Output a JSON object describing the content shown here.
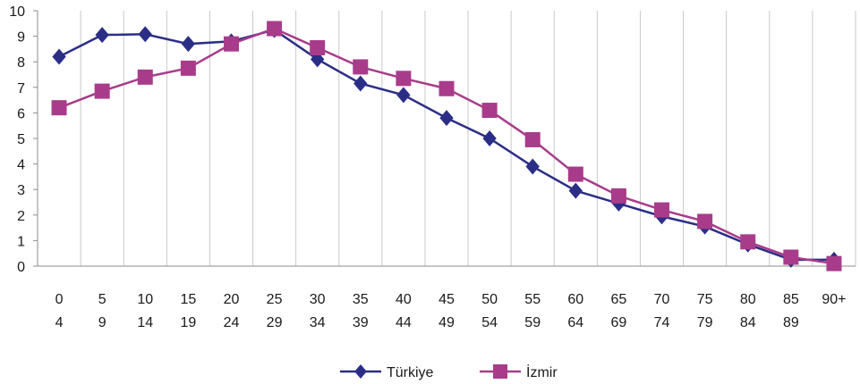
{
  "chart_data": {
    "type": "line",
    "categories": [
      [
        "0",
        "4"
      ],
      [
        "5",
        "9"
      ],
      [
        "10",
        "14"
      ],
      [
        "15",
        "19"
      ],
      [
        "20",
        "24"
      ],
      [
        "25",
        "29"
      ],
      [
        "30",
        "34"
      ],
      [
        "35",
        "39"
      ],
      [
        "40",
        "44"
      ],
      [
        "45",
        "49"
      ],
      [
        "50",
        "54"
      ],
      [
        "55",
        "59"
      ],
      [
        "60",
        "64"
      ],
      [
        "65",
        "69"
      ],
      [
        "70",
        "74"
      ],
      [
        "75",
        "79"
      ],
      [
        "80",
        "84"
      ],
      [
        "85",
        "89"
      ],
      [
        "90+",
        ""
      ]
    ],
    "series": [
      {
        "name": "Türkiye",
        "color": "#2b2e86",
        "marker": "diamond",
        "values": [
          8.2,
          9.05,
          9.08,
          8.7,
          8.8,
          9.25,
          8.1,
          7.15,
          6.7,
          5.8,
          5.0,
          3.9,
          2.95,
          2.45,
          1.95,
          1.55,
          0.85,
          0.25,
          0.25
        ]
      },
      {
        "name": "İzmir",
        "color": "#a83c8a",
        "marker": "square",
        "values": [
          6.2,
          6.85,
          7.4,
          7.75,
          8.7,
          9.3,
          8.55,
          7.8,
          7.35,
          6.95,
          6.1,
          4.95,
          3.6,
          2.75,
          2.2,
          1.75,
          0.95,
          0.35,
          0.1
        ]
      }
    ],
    "y_ticks": [
      "0",
      "1",
      "2",
      "3",
      "4",
      "5",
      "6",
      "7",
      "8",
      "9",
      "10"
    ],
    "ylim": [
      0,
      10
    ],
    "grid": "vertical",
    "legend": "bottom-center",
    "title": "",
    "xlabel": "",
    "ylabel": ""
  }
}
